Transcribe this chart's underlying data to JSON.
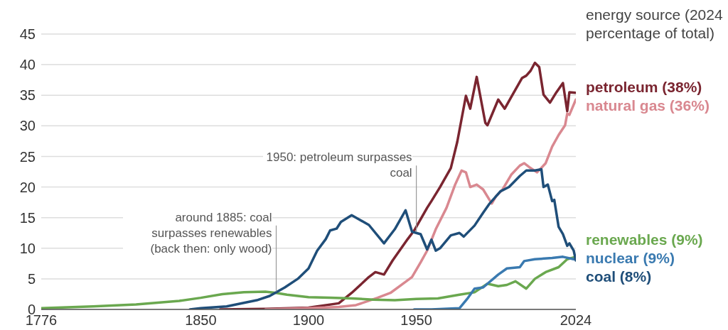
{
  "chart_data": {
    "type": "line",
    "legend_title": "energy source (2024 percentage of total)",
    "legend": "right",
    "grid": "y",
    "marker": "none",
    "line_style": "solid",
    "xlim": [
      1776,
      2024
    ],
    "xticks": [
      1776,
      1850,
      1900,
      1950,
      2024
    ],
    "ylim": [
      0,
      45
    ],
    "yticks": [
      0,
      5,
      10,
      15,
      20,
      25,
      30,
      35,
      40,
      45
    ],
    "annotations": [
      {
        "text": "around 1885: coal surpasses renewables (back then: only wood)",
        "x": 1885,
        "y": 2.7
      },
      {
        "text": "1950: petroleum surpasses coal",
        "x": 1950,
        "y": 12.5
      }
    ],
    "series": [
      {
        "name": "petroleum (38%)",
        "color": "#7a2530",
        "x": [
          1859,
          1880,
          1900,
          1914,
          1920,
          1928,
          1931,
          1935,
          1939,
          1946,
          1949,
          1955,
          1957,
          1961,
          1966,
          1969,
          1973,
          1975,
          1978,
          1982,
          1983,
          1988,
          1991,
          1994,
          1999,
          2001,
          2003,
          2005,
          2007,
          2009,
          2012,
          2015,
          2018,
          2020,
          2021,
          2024
        ],
        "values": [
          0,
          0.1,
          0.3,
          1.0,
          2.7,
          5.3,
          6.1,
          5.7,
          8.0,
          11.5,
          12.9,
          16.6,
          17.7,
          20.0,
          23.1,
          27.4,
          34.9,
          32.8,
          38.0,
          30.5,
          30.1,
          34.3,
          32.8,
          34.7,
          37.8,
          38.2,
          39.0,
          40.3,
          39.6,
          35.1,
          33.8,
          35.5,
          37.0,
          32.4,
          35.5,
          35.4
        ]
      },
      {
        "name": "natural gas (36%)",
        "color": "#d98890",
        "x": [
          1880,
          1900,
          1914,
          1922,
          1932,
          1938,
          1945,
          1948,
          1952,
          1955,
          1959,
          1964,
          1968,
          1971,
          1973,
          1975,
          1978,
          1981,
          1985,
          1987,
          1990,
          1994,
          1998,
          2000,
          2003,
          2006,
          2010,
          2013,
          2016,
          2019,
          2020,
          2021,
          2024
        ],
        "values": [
          0,
          0.2,
          0.4,
          0.7,
          1.9,
          2.7,
          4.5,
          5.3,
          7.7,
          9.6,
          13.1,
          16.6,
          20.4,
          22.7,
          22.4,
          20.0,
          20.4,
          19.6,
          17.3,
          18.5,
          19.6,
          22.0,
          23.5,
          23.9,
          23.1,
          22.4,
          23.9,
          26.6,
          28.5,
          30.1,
          32.0,
          31.8,
          34.3
        ]
      },
      {
        "name": "renewables (9%)",
        "color": "#6aa84f",
        "x": [
          1776,
          1800,
          1820,
          1840,
          1850,
          1860,
          1870,
          1880,
          1885,
          1890,
          1900,
          1910,
          1920,
          1930,
          1940,
          1950,
          1960,
          1970,
          1977,
          1983,
          1988,
          1992,
          1996,
          2001,
          2005,
          2010,
          2016,
          2020,
          2024
        ],
        "values": [
          0.2,
          0.5,
          0.8,
          1.4,
          1.9,
          2.5,
          2.8,
          2.9,
          2.7,
          2.4,
          2.0,
          1.9,
          1.8,
          1.6,
          1.5,
          1.7,
          1.8,
          2.4,
          2.8,
          4.2,
          3.8,
          4.0,
          4.6,
          3.4,
          5.0,
          6.1,
          6.9,
          8.2,
          8.6
        ]
      },
      {
        "name": "nuclear (9%)",
        "color": "#3a7ab0",
        "x": [
          1949,
          1957,
          1970,
          1974,
          1977,
          1981,
          1988,
          1992,
          1998,
          2000,
          2005,
          2013,
          2018,
          2023,
          2024
        ],
        "values": [
          0,
          0,
          0.2,
          1.9,
          3.4,
          3.6,
          5.7,
          6.7,
          6.9,
          7.9,
          8.2,
          8.4,
          8.6,
          8.2,
          8.3
        ]
      },
      {
        "name": "coal (8%)",
        "color": "#1f4e79",
        "x": [
          1845,
          1850,
          1862,
          1876,
          1882,
          1889,
          1895,
          1900,
          1904,
          1908,
          1910,
          1913,
          1915,
          1920,
          1928,
          1935,
          1940,
          1945,
          1948,
          1952,
          1955,
          1957,
          1959,
          1961,
          1966,
          1970,
          1972,
          1977,
          1981,
          1984,
          1989,
          1993,
          1998,
          2001,
          2005,
          2008,
          2009,
          2011,
          2013,
          2014,
          2016,
          2018,
          2020,
          2021,
          2023,
          2024
        ],
        "values": [
          0,
          0.2,
          0.5,
          1.5,
          2.2,
          3.6,
          5.0,
          6.7,
          9.6,
          11.5,
          12.9,
          13.2,
          14.3,
          15.4,
          13.8,
          10.8,
          13.1,
          16.2,
          12.7,
          12.3,
          9.8,
          11.4,
          9.6,
          10.0,
          12.1,
          12.5,
          11.9,
          13.7,
          15.8,
          17.3,
          19.3,
          20.0,
          21.8,
          22.7,
          22.7,
          22.9,
          20.0,
          20.4,
          17.7,
          17.9,
          13.5,
          12.3,
          10.4,
          10.8,
          9.6,
          8.0
        ]
      }
    ]
  }
}
